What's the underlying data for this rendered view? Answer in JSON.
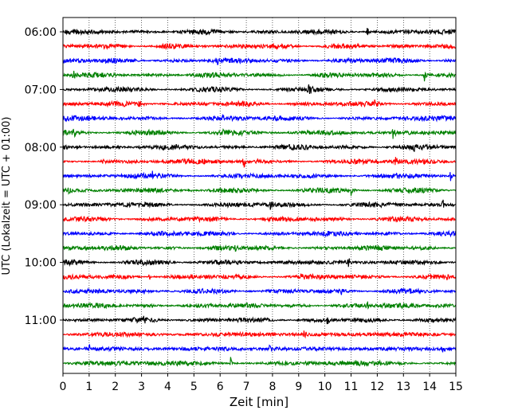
{
  "chart_data": {
    "type": "line",
    "xlabel": "Zeit  [min]",
    "ylabel": "UTC (Lokalzeit = UTC + 01:00)",
    "xlim": [
      0,
      15
    ],
    "x_ticks": [
      0,
      1,
      2,
      3,
      4,
      5,
      6,
      7,
      8,
      9,
      10,
      11,
      12,
      13,
      14,
      15
    ],
    "x_tick_labels": [
      "0",
      "1",
      "2",
      "3",
      "4",
      "5",
      "6",
      "7",
      "8",
      "9",
      "10",
      "11",
      "12",
      "13",
      "14",
      "15"
    ],
    "y_tick_labels": [
      "06:00",
      "07:00",
      "08:00",
      "09:00",
      "10:00",
      "11:00"
    ],
    "y_tick_trace_index": [
      0,
      4,
      8,
      12,
      16,
      20
    ],
    "grid": "vertical-dotted",
    "trace_interval_minutes": 15,
    "colors": [
      "#000000",
      "#ff0000",
      "#0000ff",
      "#008000"
    ],
    "series": [
      {
        "start": "06:00",
        "color": "#000000",
        "events": [
          {
            "t": 11.6,
            "a": 1.0
          },
          {
            "t": 5.6,
            "a": 0.35
          }
        ]
      },
      {
        "start": "06:15",
        "color": "#ff0000",
        "events": [
          {
            "t": 7.0,
            "a": 0.6
          },
          {
            "t": 4.8,
            "a": 0.35
          }
        ]
      },
      {
        "start": "06:30",
        "color": "#0000ff",
        "events": [
          {
            "t": 5.9,
            "a": 0.8
          }
        ]
      },
      {
        "start": "06:45",
        "color": "#008000",
        "events": [
          {
            "t": 0.4,
            "a": 0.7
          },
          {
            "t": 13.8,
            "a": 1.0
          }
        ]
      },
      {
        "start": "07:00",
        "color": "#000000",
        "events": [
          {
            "t": 9.4,
            "a": 0.7
          }
        ]
      },
      {
        "start": "07:15",
        "color": "#ff0000",
        "events": [
          {
            "t": 2.9,
            "a": 0.8
          },
          {
            "t": 11.9,
            "a": 0.7
          }
        ]
      },
      {
        "start": "07:30",
        "color": "#0000ff",
        "events": [
          {
            "t": 6.1,
            "a": 0.4
          },
          {
            "t": 7.9,
            "a": 0.35
          }
        ]
      },
      {
        "start": "07:45",
        "color": "#008000",
        "events": [
          {
            "t": 0.4,
            "a": 0.8
          },
          {
            "t": 6.1,
            "a": 0.6
          },
          {
            "t": 12.6,
            "a": 1.0
          }
        ]
      },
      {
        "start": "08:00",
        "color": "#000000",
        "events": [
          {
            "t": 0.5,
            "a": 0.5
          },
          {
            "t": 2.9,
            "a": 0.5
          },
          {
            "t": 13.4,
            "a": 0.9
          }
        ]
      },
      {
        "start": "08:15",
        "color": "#ff0000",
        "events": [
          {
            "t": 1.5,
            "a": 0.6
          },
          {
            "t": 6.9,
            "a": 0.9
          },
          {
            "t": 7.4,
            "a": 0.5
          },
          {
            "t": 12.7,
            "a": 0.5
          }
        ]
      },
      {
        "start": "08:30",
        "color": "#0000ff",
        "events": [
          {
            "t": 3.4,
            "a": 0.9
          },
          {
            "t": 9.4,
            "a": 0.6
          },
          {
            "t": 14.8,
            "a": 1.0
          }
        ]
      },
      {
        "start": "08:45",
        "color": "#008000",
        "events": [
          {
            "t": 0.2,
            "a": 0.4
          },
          {
            "t": 4.8,
            "a": 0.4
          },
          {
            "t": 11.0,
            "a": 0.9
          }
        ]
      },
      {
        "start": "09:00",
        "color": "#000000",
        "events": [
          {
            "t": 1.7,
            "a": 0.6
          },
          {
            "t": 7.9,
            "a": 1.0
          },
          {
            "t": 14.5,
            "a": 0.8
          }
        ]
      },
      {
        "start": "09:15",
        "color": "#ff0000",
        "events": []
      },
      {
        "start": "09:30",
        "color": "#0000ff",
        "events": [
          {
            "t": 3.6,
            "a": 0.5
          },
          {
            "t": 9.2,
            "a": 0.4
          }
        ]
      },
      {
        "start": "09:45",
        "color": "#008000",
        "events": [
          {
            "t": 6.6,
            "a": 0.4
          }
        ]
      },
      {
        "start": "10:00",
        "color": "#000000",
        "events": [
          {
            "t": 4.0,
            "a": 0.4
          },
          {
            "t": 10.9,
            "a": 0.8
          }
        ]
      },
      {
        "start": "10:15",
        "color": "#ff0000",
        "events": [
          {
            "t": 3.3,
            "a": 0.5
          },
          {
            "t": 9.1,
            "a": 1.0
          }
        ]
      },
      {
        "start": "10:30",
        "color": "#0000ff",
        "events": [
          {
            "t": 3.1,
            "a": 0.4
          },
          {
            "t": 10.6,
            "a": 0.6
          }
        ]
      },
      {
        "start": "10:45",
        "color": "#008000",
        "events": [
          {
            "t": 3.3,
            "a": 0.4
          },
          {
            "t": 11.6,
            "a": 0.9
          }
        ]
      },
      {
        "start": "11:00",
        "color": "#000000",
        "events": [
          {
            "t": 3.1,
            "a": 0.4
          },
          {
            "t": 10.1,
            "a": 0.8
          }
        ]
      },
      {
        "start": "11:15",
        "color": "#ff0000",
        "events": [
          {
            "t": 3.0,
            "a": 0.4
          },
          {
            "t": 9.2,
            "a": 0.9
          }
        ]
      },
      {
        "start": "11:30",
        "color": "#0000ff",
        "events": [
          {
            "t": 1.0,
            "a": 0.5
          },
          {
            "t": 7.9,
            "a": 0.7
          },
          {
            "t": 14.5,
            "a": 0.7
          }
        ]
      },
      {
        "start": "11:45",
        "color": "#008000",
        "events": [
          {
            "t": 6.4,
            "a": 0.9
          }
        ]
      }
    ]
  }
}
